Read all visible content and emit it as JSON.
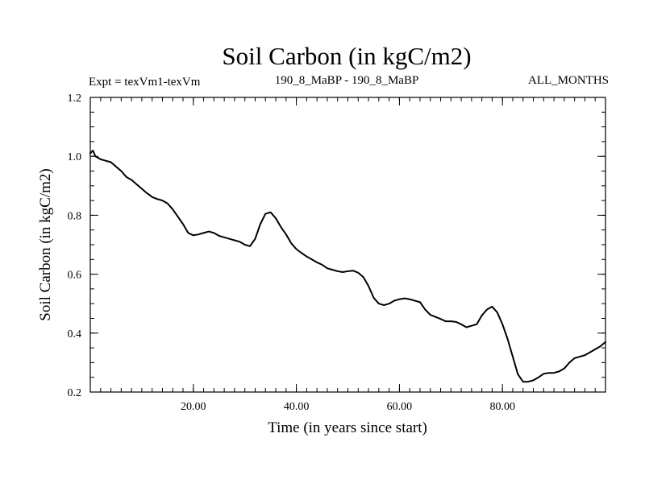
{
  "chart_data": {
    "type": "line",
    "title": "Soil Carbon (in kgC/m2)",
    "subtitle_left": "Expt = texVm1-texVm",
    "subtitle_center": "190_8_MaBP - 190_8_MaBP",
    "subtitle_right": "ALL_MONTHS",
    "xlabel": "Time (in years since start)",
    "ylabel": "Soil Carbon (in kgC/m2)",
    "xlim": [
      0,
      100
    ],
    "ylim": [
      0.2,
      1.2
    ],
    "x_ticks": [
      {
        "value": 20,
        "label": "20.00"
      },
      {
        "value": 40,
        "label": "40.00"
      },
      {
        "value": 60,
        "label": "60.00"
      },
      {
        "value": 80,
        "label": "80.00"
      }
    ],
    "y_ticks": [
      {
        "value": 0.2,
        "label": "0.2"
      },
      {
        "value": 0.4,
        "label": "0.4"
      },
      {
        "value": 0.6,
        "label": "0.6"
      },
      {
        "value": 0.8,
        "label": "0.8"
      },
      {
        "value": 1.0,
        "label": "1.0"
      },
      {
        "value": 1.2,
        "label": "1.2"
      }
    ],
    "x_minor_step": 2,
    "y_minor_step": 0.05,
    "grid": false,
    "series": [
      {
        "name": "Soil Carbon",
        "color": "#000000",
        "x": [
          0,
          0.5,
          1,
          2,
          3,
          4,
          5,
          6,
          7,
          8,
          9,
          10,
          11,
          12,
          13,
          14,
          15,
          16,
          17,
          18,
          19,
          20,
          21,
          22,
          23,
          24,
          25,
          26,
          27,
          28,
          29,
          30,
          31,
          32,
          33,
          34,
          35,
          36,
          37,
          38,
          39,
          40,
          41,
          42,
          43,
          44,
          45,
          46,
          47,
          48,
          49,
          50,
          51,
          52,
          53,
          54,
          55,
          56,
          57,
          58,
          59,
          60,
          61,
          62,
          63,
          64,
          65,
          66,
          67,
          68,
          69,
          70,
          71,
          72,
          73,
          74,
          75,
          76,
          77,
          78,
          79,
          80,
          81,
          82,
          83,
          84,
          85,
          86,
          87,
          88,
          89,
          90,
          91,
          92,
          93,
          94,
          95,
          96,
          97,
          98,
          99,
          100
        ],
        "y": [
          1.01,
          1.02,
          1.0,
          0.99,
          0.985,
          0.98,
          0.965,
          0.95,
          0.93,
          0.92,
          0.905,
          0.89,
          0.875,
          0.862,
          0.855,
          0.85,
          0.84,
          0.82,
          0.795,
          0.77,
          0.74,
          0.732,
          0.735,
          0.74,
          0.745,
          0.74,
          0.73,
          0.725,
          0.72,
          0.715,
          0.71,
          0.7,
          0.695,
          0.72,
          0.77,
          0.805,
          0.81,
          0.79,
          0.76,
          0.735,
          0.705,
          0.685,
          0.672,
          0.66,
          0.65,
          0.64,
          0.632,
          0.62,
          0.615,
          0.61,
          0.607,
          0.61,
          0.612,
          0.605,
          0.59,
          0.56,
          0.52,
          0.5,
          0.495,
          0.5,
          0.51,
          0.515,
          0.518,
          0.515,
          0.51,
          0.505,
          0.48,
          0.462,
          0.455,
          0.448,
          0.44,
          0.44,
          0.438,
          0.43,
          0.42,
          0.425,
          0.43,
          0.46,
          0.48,
          0.49,
          0.47,
          0.43,
          0.38,
          0.32,
          0.26,
          0.235,
          0.235,
          0.24,
          0.25,
          0.262,
          0.265,
          0.265,
          0.27,
          0.28,
          0.3,
          0.315,
          0.32,
          0.325,
          0.335,
          0.345,
          0.355,
          0.37
        ]
      }
    ]
  }
}
